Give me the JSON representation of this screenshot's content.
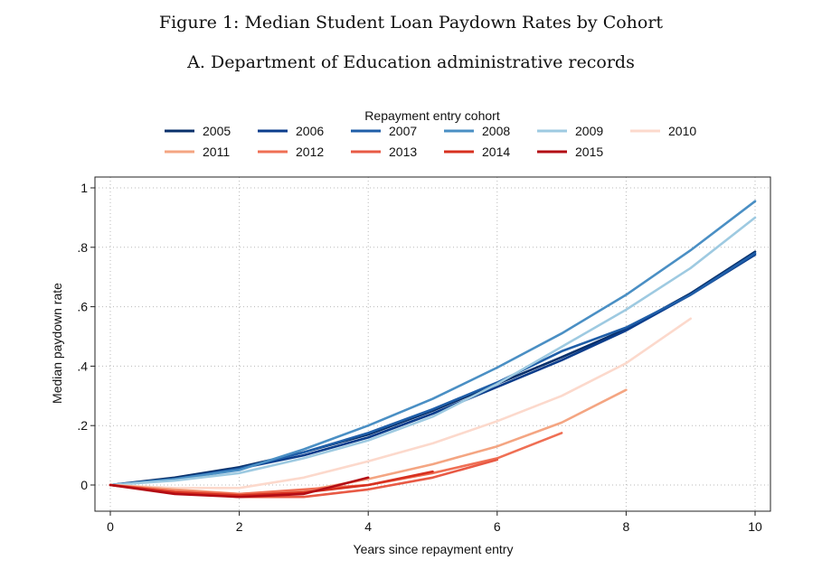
{
  "figure": {
    "title": "Figure 1: Median Student Loan Paydown Rates by Cohort",
    "subtitle": "A. Department of Education administrative records"
  },
  "chart_data": {
    "type": "line",
    "title": "Median Student Loan Paydown Rates by Cohort",
    "xlabel": "Years since repayment entry",
    "ylabel": "Median paydown rate",
    "xlim": [
      0,
      10
    ],
    "ylim": [
      -0.08,
      1.0
    ],
    "xticks": [
      0,
      2,
      4,
      6,
      8,
      10
    ],
    "xtick_labels": [
      "0",
      "2",
      "4",
      "6",
      "8",
      "10"
    ],
    "yticks": [
      0,
      0.2,
      0.4,
      0.6,
      0.8,
      1
    ],
    "ytick_labels": [
      "0",
      ".2",
      ".4",
      ".6",
      ".8",
      "1"
    ],
    "grid": true,
    "legend_title": "Repayment entry cohort",
    "legend_position": "top",
    "series": [
      {
        "name": "2005",
        "color": "#08306b",
        "x": [
          0,
          1,
          2,
          3,
          4,
          5,
          6,
          7,
          8,
          9,
          10
        ],
        "y": [
          0,
          0.025,
          0.06,
          0.11,
          0.17,
          0.25,
          0.34,
          0.43,
          0.525,
          0.645,
          0.785
        ]
      },
      {
        "name": "2006",
        "color": "#0b3d8c",
        "x": [
          0,
          1,
          2,
          3,
          4,
          5,
          6,
          7,
          8,
          9,
          10
        ],
        "y": [
          0,
          0.02,
          0.055,
          0.1,
          0.16,
          0.24,
          0.33,
          0.42,
          0.52,
          0.64,
          0.775
        ]
      },
      {
        "name": "2007",
        "color": "#1f5ea8",
        "x": [
          0,
          1,
          2,
          3,
          4,
          5,
          6,
          7,
          8,
          9,
          10
        ],
        "y": [
          0,
          0.02,
          0.055,
          0.11,
          0.175,
          0.255,
          0.345,
          0.45,
          0.53,
          0.64,
          0.78
        ]
      },
      {
        "name": "2008",
        "color": "#4a8fc4",
        "x": [
          0,
          1,
          2,
          3,
          4,
          5,
          6,
          7,
          8,
          9,
          10
        ],
        "y": [
          0,
          0.02,
          0.05,
          0.12,
          0.2,
          0.29,
          0.395,
          0.51,
          0.64,
          0.79,
          0.955
        ]
      },
      {
        "name": "2009",
        "color": "#9ecae1",
        "x": [
          0,
          1,
          2,
          3,
          4,
          5,
          6,
          7,
          8,
          9,
          10
        ],
        "y": [
          0,
          0.015,
          0.04,
          0.09,
          0.15,
          0.23,
          0.34,
          0.465,
          0.59,
          0.73,
          0.9
        ]
      },
      {
        "name": "2010",
        "color": "#fcd9cc",
        "x": [
          0,
          1,
          2,
          3,
          4,
          5,
          6,
          7,
          8,
          9
        ],
        "y": [
          0,
          -0.01,
          -0.01,
          0.025,
          0.08,
          0.14,
          0.215,
          0.3,
          0.41,
          0.56
        ]
      },
      {
        "name": "2011",
        "color": "#f4a582",
        "x": [
          0,
          1,
          2,
          3,
          4,
          5,
          6,
          7,
          8
        ],
        "y": [
          0,
          -0.015,
          -0.03,
          -0.02,
          0.02,
          0.07,
          0.13,
          0.21,
          0.32
        ]
      },
      {
        "name": "2012",
        "color": "#ef6f54",
        "x": [
          0,
          1,
          2,
          3,
          4,
          5,
          6,
          7
        ],
        "y": [
          0,
          -0.02,
          -0.03,
          -0.015,
          0.0,
          0.04,
          0.09,
          0.175
        ]
      },
      {
        "name": "2013",
        "color": "#e85a45",
        "x": [
          0,
          1,
          2,
          3,
          4,
          5,
          6
        ],
        "y": [
          0,
          -0.025,
          -0.04,
          -0.04,
          -0.015,
          0.025,
          0.085
        ]
      },
      {
        "name": "2014",
        "color": "#d7301f",
        "x": [
          0,
          1,
          2,
          3,
          4,
          5
        ],
        "y": [
          0,
          -0.025,
          -0.035,
          -0.025,
          0.0,
          0.045
        ]
      },
      {
        "name": "2015",
        "color": "#b30c14",
        "x": [
          0,
          1,
          2,
          3,
          4
        ],
        "y": [
          0,
          -0.03,
          -0.04,
          -0.03,
          0.025
        ]
      }
    ]
  }
}
